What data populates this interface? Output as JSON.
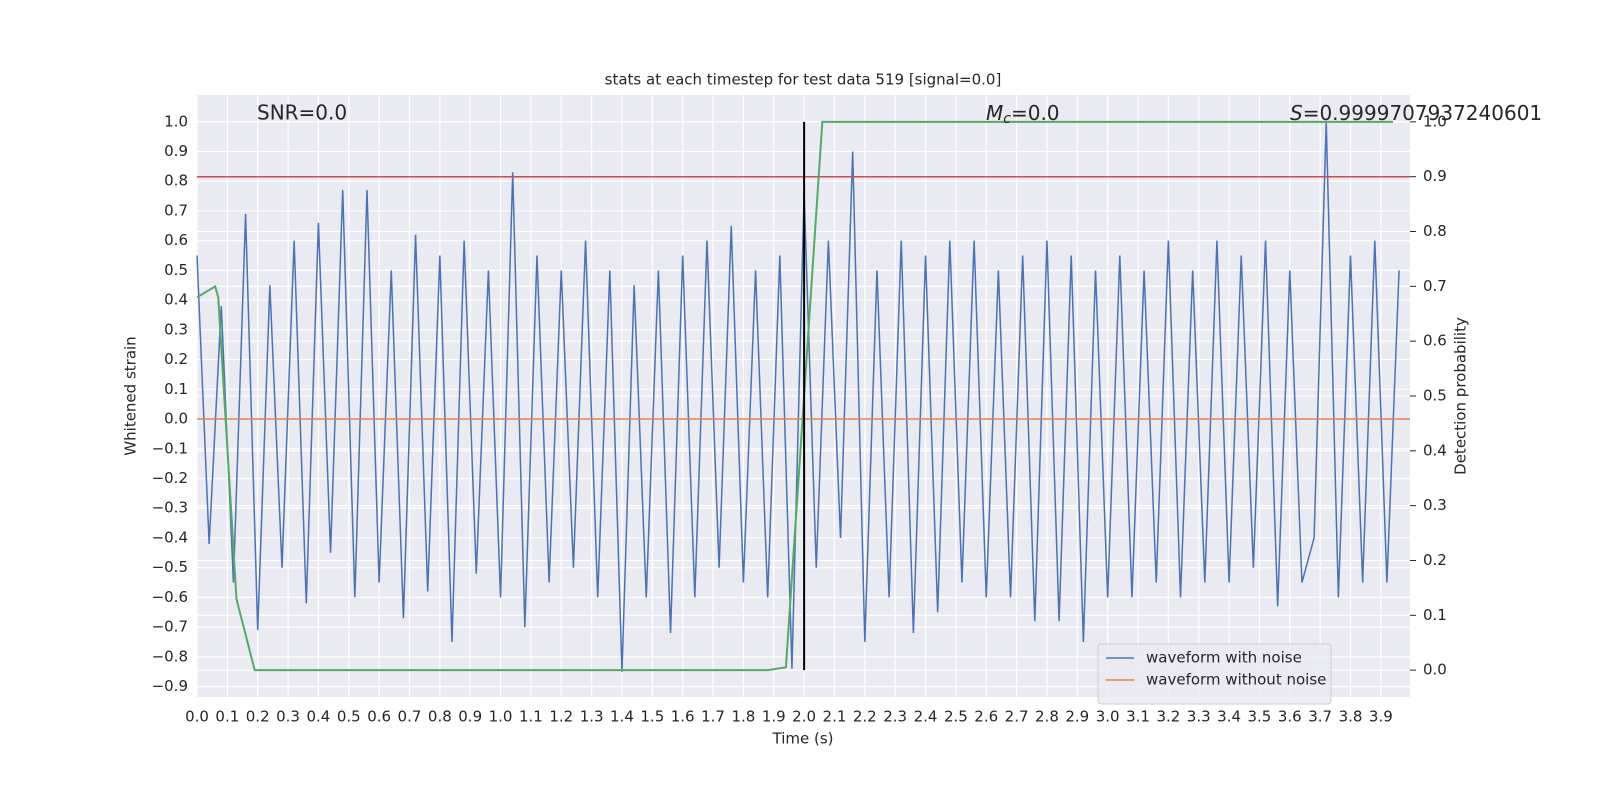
{
  "chart_data": {
    "type": "line",
    "title": "stats at each timestep for test data 519 [signal=0.0]",
    "xlabel": "Time (s)",
    "ylabel": "Whitened strain",
    "y2label": "Detection probability",
    "annotations": {
      "snr": {
        "text": "SNR=0.0"
      },
      "mc": {
        "symbol": "M",
        "subscript": "c",
        "text": "=0.0"
      },
      "s": {
        "symbol": "S",
        "text": "=0.9999707937240601"
      }
    },
    "xlim": [
      0,
      3.996
    ],
    "ylim": [
      -0.935,
      1.09
    ],
    "y2lim": [
      -0.049,
      1.049
    ],
    "xticks": [
      {
        "value": 0,
        "label": "0.0"
      },
      0.1,
      0.2,
      0.3,
      0.4,
      0.5,
      0.6,
      0.7,
      0.8,
      0.9,
      {
        "value": 1,
        "label": "1.0"
      },
      1.1,
      1.2,
      1.3,
      1.4,
      1.5,
      1.6,
      1.7,
      1.8,
      1.9,
      {
        "value": 2,
        "label": "2.0"
      },
      2.1,
      2.2,
      2.3,
      2.4,
      2.5,
      2.6,
      2.7,
      2.8,
      2.9,
      {
        "value": 3,
        "label": "3.0"
      },
      3.1,
      3.2,
      3.3,
      3.4,
      3.5,
      3.6,
      3.7,
      3.8,
      3.9
    ],
    "yticks": [
      {
        "value": -0.9,
        "label": "−0.9"
      },
      {
        "value": -0.8,
        "label": "−0.8"
      },
      {
        "value": -0.7,
        "label": "−0.7"
      },
      {
        "value": -0.6,
        "label": "−0.6"
      },
      {
        "value": -0.5,
        "label": "−0.5"
      },
      {
        "value": -0.4,
        "label": "−0.4"
      },
      {
        "value": -0.3,
        "label": "−0.3"
      },
      {
        "value": -0.2,
        "label": "−0.2"
      },
      {
        "value": -0.1,
        "label": "−0.1"
      },
      {
        "value": 0,
        "label": "0.0"
      },
      0.1,
      0.2,
      0.3,
      0.4,
      0.5,
      0.6,
      0.7,
      0.8,
      0.9,
      {
        "value": 1,
        "label": "1.0"
      }
    ],
    "y2ticks": [
      {
        "value": 0,
        "label": "0.0"
      },
      0.1,
      0.2,
      0.3,
      0.4,
      0.5,
      0.6,
      0.7,
      0.8,
      0.9,
      {
        "value": 1,
        "label": "1.0"
      }
    ],
    "grid": true,
    "legend": "lower right",
    "series": [
      {
        "name": "waveform with noise",
        "color": "#4c72b0",
        "x": [
          0,
          0.04,
          0.08,
          0.12,
          0.16,
          0.2,
          0.24,
          0.28,
          0.32,
          0.36,
          0.4,
          0.44,
          0.48,
          0.52,
          0.56,
          0.6,
          0.64,
          0.68,
          0.72,
          0.76,
          0.8,
          0.84,
          0.88,
          0.92,
          0.96,
          1.0,
          1.04,
          1.08,
          1.12,
          1.16,
          1.2,
          1.24,
          1.28,
          1.32,
          1.36,
          1.4,
          1.44,
          1.48,
          1.52,
          1.56,
          1.6,
          1.64,
          1.68,
          1.72,
          1.76,
          1.8,
          1.84,
          1.88,
          1.92,
          1.96,
          2.0,
          2.04,
          2.08,
          2.12,
          2.16,
          2.2,
          2.24,
          2.28,
          2.32,
          2.36,
          2.4,
          2.44,
          2.48,
          2.52,
          2.56,
          2.6,
          2.64,
          2.68,
          2.72,
          2.76,
          2.8,
          2.84,
          2.88,
          2.92,
          2.96,
          3.0,
          3.04,
          3.08,
          3.12,
          3.16,
          3.2,
          3.24,
          3.28,
          3.32,
          3.36,
          3.4,
          3.44,
          3.48,
          3.52,
          3.56,
          3.6,
          3.64,
          3.68,
          3.72,
          3.76,
          3.8,
          3.84,
          3.88,
          3.92,
          3.96
        ],
        "values": [
          0.55,
          -0.42,
          0.38,
          -0.55,
          0.69,
          -0.71,
          0.45,
          -0.5,
          0.6,
          -0.62,
          0.66,
          -0.45,
          0.77,
          -0.6,
          0.77,
          -0.55,
          0.5,
          -0.67,
          0.62,
          -0.58,
          0.55,
          -0.75,
          0.6,
          -0.52,
          0.5,
          -0.6,
          0.83,
          -0.7,
          0.55,
          -0.55,
          0.5,
          -0.5,
          0.6,
          -0.6,
          0.5,
          -0.85,
          0.45,
          -0.6,
          0.5,
          -0.72,
          0.55,
          -0.6,
          0.6,
          -0.5,
          0.65,
          -0.55,
          0.5,
          -0.6,
          0.55,
          -0.84,
          0.76,
          -0.5,
          0.6,
          -0.4,
          0.9,
          -0.75,
          0.5,
          -0.6,
          0.6,
          -0.72,
          0.55,
          -0.65,
          0.6,
          -0.55,
          0.6,
          -0.6,
          0.5,
          -0.6,
          0.55,
          -0.68,
          0.6,
          -0.68,
          0.55,
          -0.75,
          0.5,
          -0.6,
          0.55,
          -0.6,
          0.5,
          -0.55,
          0.6,
          -0.6,
          0.5,
          -0.55,
          0.6,
          -0.55,
          0.55,
          -0.5,
          0.6,
          -0.63,
          0.5,
          -0.55,
          -0.4,
          1.0,
          -0.6,
          0.55,
          -0.55,
          0.6,
          -0.55,
          0.5
        ]
      },
      {
        "name": "waveform without noise",
        "color": "#dd8452",
        "x": [
          0,
          3.996
        ],
        "values": [
          0,
          0
        ]
      }
    ],
    "detection": {
      "color": "#55a868",
      "axis": "y2",
      "x": [
        0,
        0.06,
        0.07,
        0.13,
        0.19,
        1.88,
        1.94,
        2.0,
        2.06,
        3.94
      ],
      "values": [
        0.68,
        0.7,
        0.68,
        0.13,
        0.0,
        0.0,
        0.005,
        0.5,
        1.0,
        1.0
      ]
    },
    "threshold": {
      "value": 0.9,
      "axis": "y2",
      "color": "#c44e52"
    },
    "marker_line": {
      "x": 2.0,
      "y2": [
        0,
        1
      ],
      "color": "#000000"
    }
  }
}
